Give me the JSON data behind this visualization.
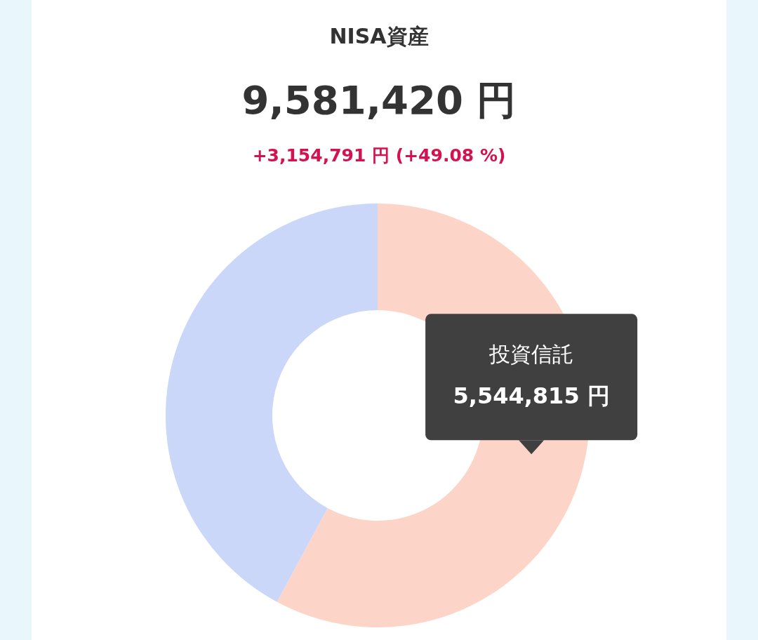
{
  "chart_data": {
    "type": "donut",
    "title": "NISA資産",
    "subtitle": "9,581,420 円",
    "annotations": [
      "+3,154,791 円 (+49.08 %)"
    ],
    "categories": [
      "投資信託",
      null
    ],
    "values": [
      5544815,
      4036605
    ],
    "colors": [
      "#fdd5c8",
      "#cad7f9"
    ],
    "value_labels": [
      "5,544,815 円",
      null
    ]
  }
}
